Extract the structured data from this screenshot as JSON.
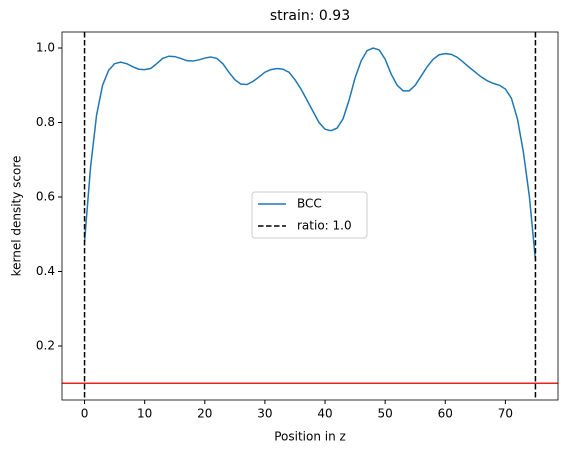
{
  "chart_data": {
    "type": "line",
    "title": "strain: 0.93",
    "xlabel": "Position in z",
    "ylabel": "kernel density score",
    "x": [
      0,
      1,
      2,
      3,
      4,
      5,
      6,
      7,
      8,
      9,
      10,
      11,
      12,
      13,
      14,
      15,
      16,
      17,
      18,
      19,
      20,
      21,
      22,
      23,
      24,
      25,
      26,
      27,
      28,
      29,
      30,
      31,
      32,
      33,
      34,
      35,
      36,
      37,
      38,
      39,
      40,
      41,
      42,
      43,
      44,
      45,
      46,
      47,
      48,
      49,
      50,
      51,
      52,
      53,
      54,
      55,
      56,
      57,
      58,
      59,
      60,
      61,
      62,
      63,
      64,
      65,
      66,
      67,
      68,
      69,
      70,
      71,
      72,
      73,
      74,
      75
    ],
    "series": [
      {
        "name": "BCC",
        "color": "#1f77b4",
        "values": [
          0.48,
          0.68,
          0.82,
          0.9,
          0.94,
          0.958,
          0.962,
          0.958,
          0.95,
          0.943,
          0.942,
          0.945,
          0.958,
          0.972,
          0.978,
          0.977,
          0.972,
          0.966,
          0.965,
          0.968,
          0.973,
          0.976,
          0.972,
          0.958,
          0.935,
          0.915,
          0.903,
          0.902,
          0.91,
          0.922,
          0.935,
          0.942,
          0.945,
          0.943,
          0.935,
          0.915,
          0.89,
          0.86,
          0.83,
          0.8,
          0.782,
          0.778,
          0.785,
          0.81,
          0.86,
          0.92,
          0.965,
          0.993,
          1.0,
          0.995,
          0.97,
          0.93,
          0.9,
          0.885,
          0.885,
          0.9,
          0.925,
          0.95,
          0.97,
          0.982,
          0.985,
          0.983,
          0.975,
          0.962,
          0.948,
          0.935,
          0.922,
          0.912,
          0.905,
          0.9,
          0.89,
          0.865,
          0.81,
          0.72,
          0.6,
          0.43
        ]
      }
    ],
    "vlines": {
      "name": "ratio: 1.0",
      "color": "#000000",
      "x": [
        0,
        75
      ]
    },
    "hline": {
      "value": 0.1,
      "color": "#e8221c"
    },
    "xlim": [
      -3.75,
      78.75
    ],
    "ylim": [
      0.055,
      1.043
    ],
    "xticks": [
      0,
      10,
      20,
      30,
      40,
      50,
      60,
      70
    ],
    "yticks": [
      0.2,
      0.4,
      0.6,
      0.8,
      {
        "value": 1,
        "label": "1.0"
      }
    ]
  }
}
